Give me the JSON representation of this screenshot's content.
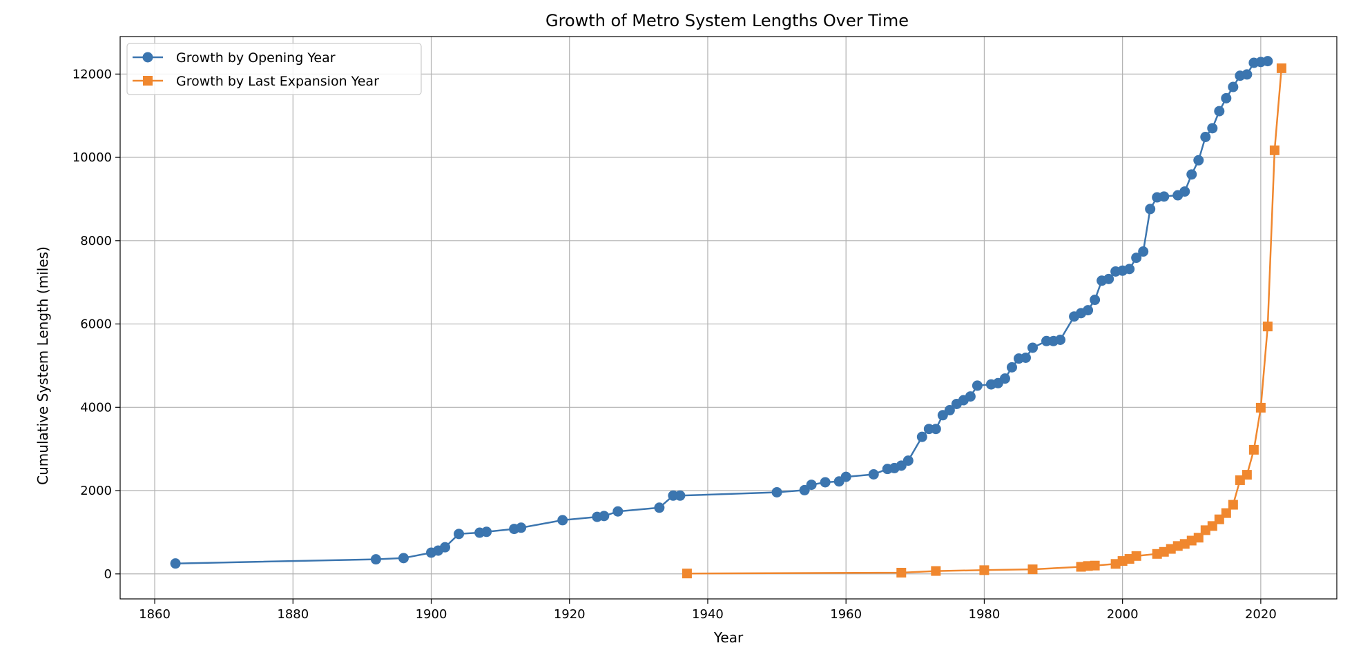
{
  "chart_data": {
    "type": "line",
    "title": "Growth of Metro System Lengths Over Time",
    "xlabel": "Year",
    "ylabel": "Cumulative System Length (miles)",
    "xlim": [
      1855,
      2031
    ],
    "ylim": [
      -600,
      12900
    ],
    "xticks": [
      1860,
      1880,
      1900,
      1920,
      1940,
      1960,
      1980,
      2000,
      2020
    ],
    "yticks": [
      0,
      2000,
      4000,
      6000,
      8000,
      10000,
      12000
    ],
    "grid": true,
    "legend_position": "top-left",
    "series": [
      {
        "name": "Growth by Opening Year",
        "color": "#3b75af",
        "marker": "circle",
        "x": [
          1863,
          1892,
          1896,
          1900,
          1901,
          1902,
          1904,
          1907,
          1908,
          1912,
          1913,
          1919,
          1924,
          1925,
          1927,
          1933,
          1935,
          1936,
          1950,
          1954,
          1955,
          1957,
          1959,
          1960,
          1964,
          1966,
          1967,
          1968,
          1969,
          1971,
          1972,
          1973,
          1974,
          1975,
          1976,
          1977,
          1978,
          1979,
          1981,
          1982,
          1983,
          1984,
          1985,
          1986,
          1987,
          1989,
          1990,
          1991,
          1993,
          1994,
          1995,
          1996,
          1997,
          1998,
          1999,
          2000,
          2001,
          2002,
          2003,
          2004,
          2005,
          2006,
          2008,
          2009,
          2010,
          2011,
          2012,
          2013,
          2014,
          2015,
          2016,
          2017,
          2018,
          2019,
          2020,
          2021
        ],
        "values": [
          250,
          350,
          380,
          510,
          560,
          640,
          960,
          990,
          1010,
          1080,
          1110,
          1290,
          1370,
          1390,
          1500,
          1590,
          1880,
          1880,
          1960,
          2010,
          2140,
          2200,
          2220,
          2330,
          2390,
          2520,
          2540,
          2600,
          2720,
          3290,
          3480,
          3480,
          3810,
          3930,
          4080,
          4170,
          4260,
          4520,
          4550,
          4580,
          4690,
          4960,
          5170,
          5190,
          5430,
          5590,
          5590,
          5620,
          6180,
          6260,
          6330,
          6580,
          7040,
          7080,
          7260,
          7280,
          7320,
          7590,
          7740,
          8760,
          9040,
          9060,
          9090,
          9180,
          9590,
          9930,
          10490,
          10700,
          11110,
          11420,
          11690,
          11960,
          11990,
          12270,
          12290,
          12310
        ]
      },
      {
        "name": "Growth by Last Expansion Year",
        "color": "#f0872e",
        "marker": "square",
        "x": [
          1937,
          1968,
          1973,
          1980,
          1987,
          1994,
          1995,
          1996,
          1999,
          2000,
          2001,
          2002,
          2005,
          2006,
          2007,
          2008,
          2009,
          2010,
          2011,
          2012,
          2013,
          2014,
          2015,
          2016,
          2017,
          2018,
          2019,
          2020,
          2021,
          2022,
          2023
        ],
        "values": [
          10,
          30,
          70,
          90,
          110,
          170,
          190,
          200,
          240,
          310,
          360,
          430,
          480,
          530,
          600,
          670,
          720,
          800,
          870,
          1050,
          1150,
          1310,
          1460,
          1660,
          2250,
          2380,
          2980,
          3990,
          5940,
          10170,
          12140
        ]
      }
    ]
  }
}
